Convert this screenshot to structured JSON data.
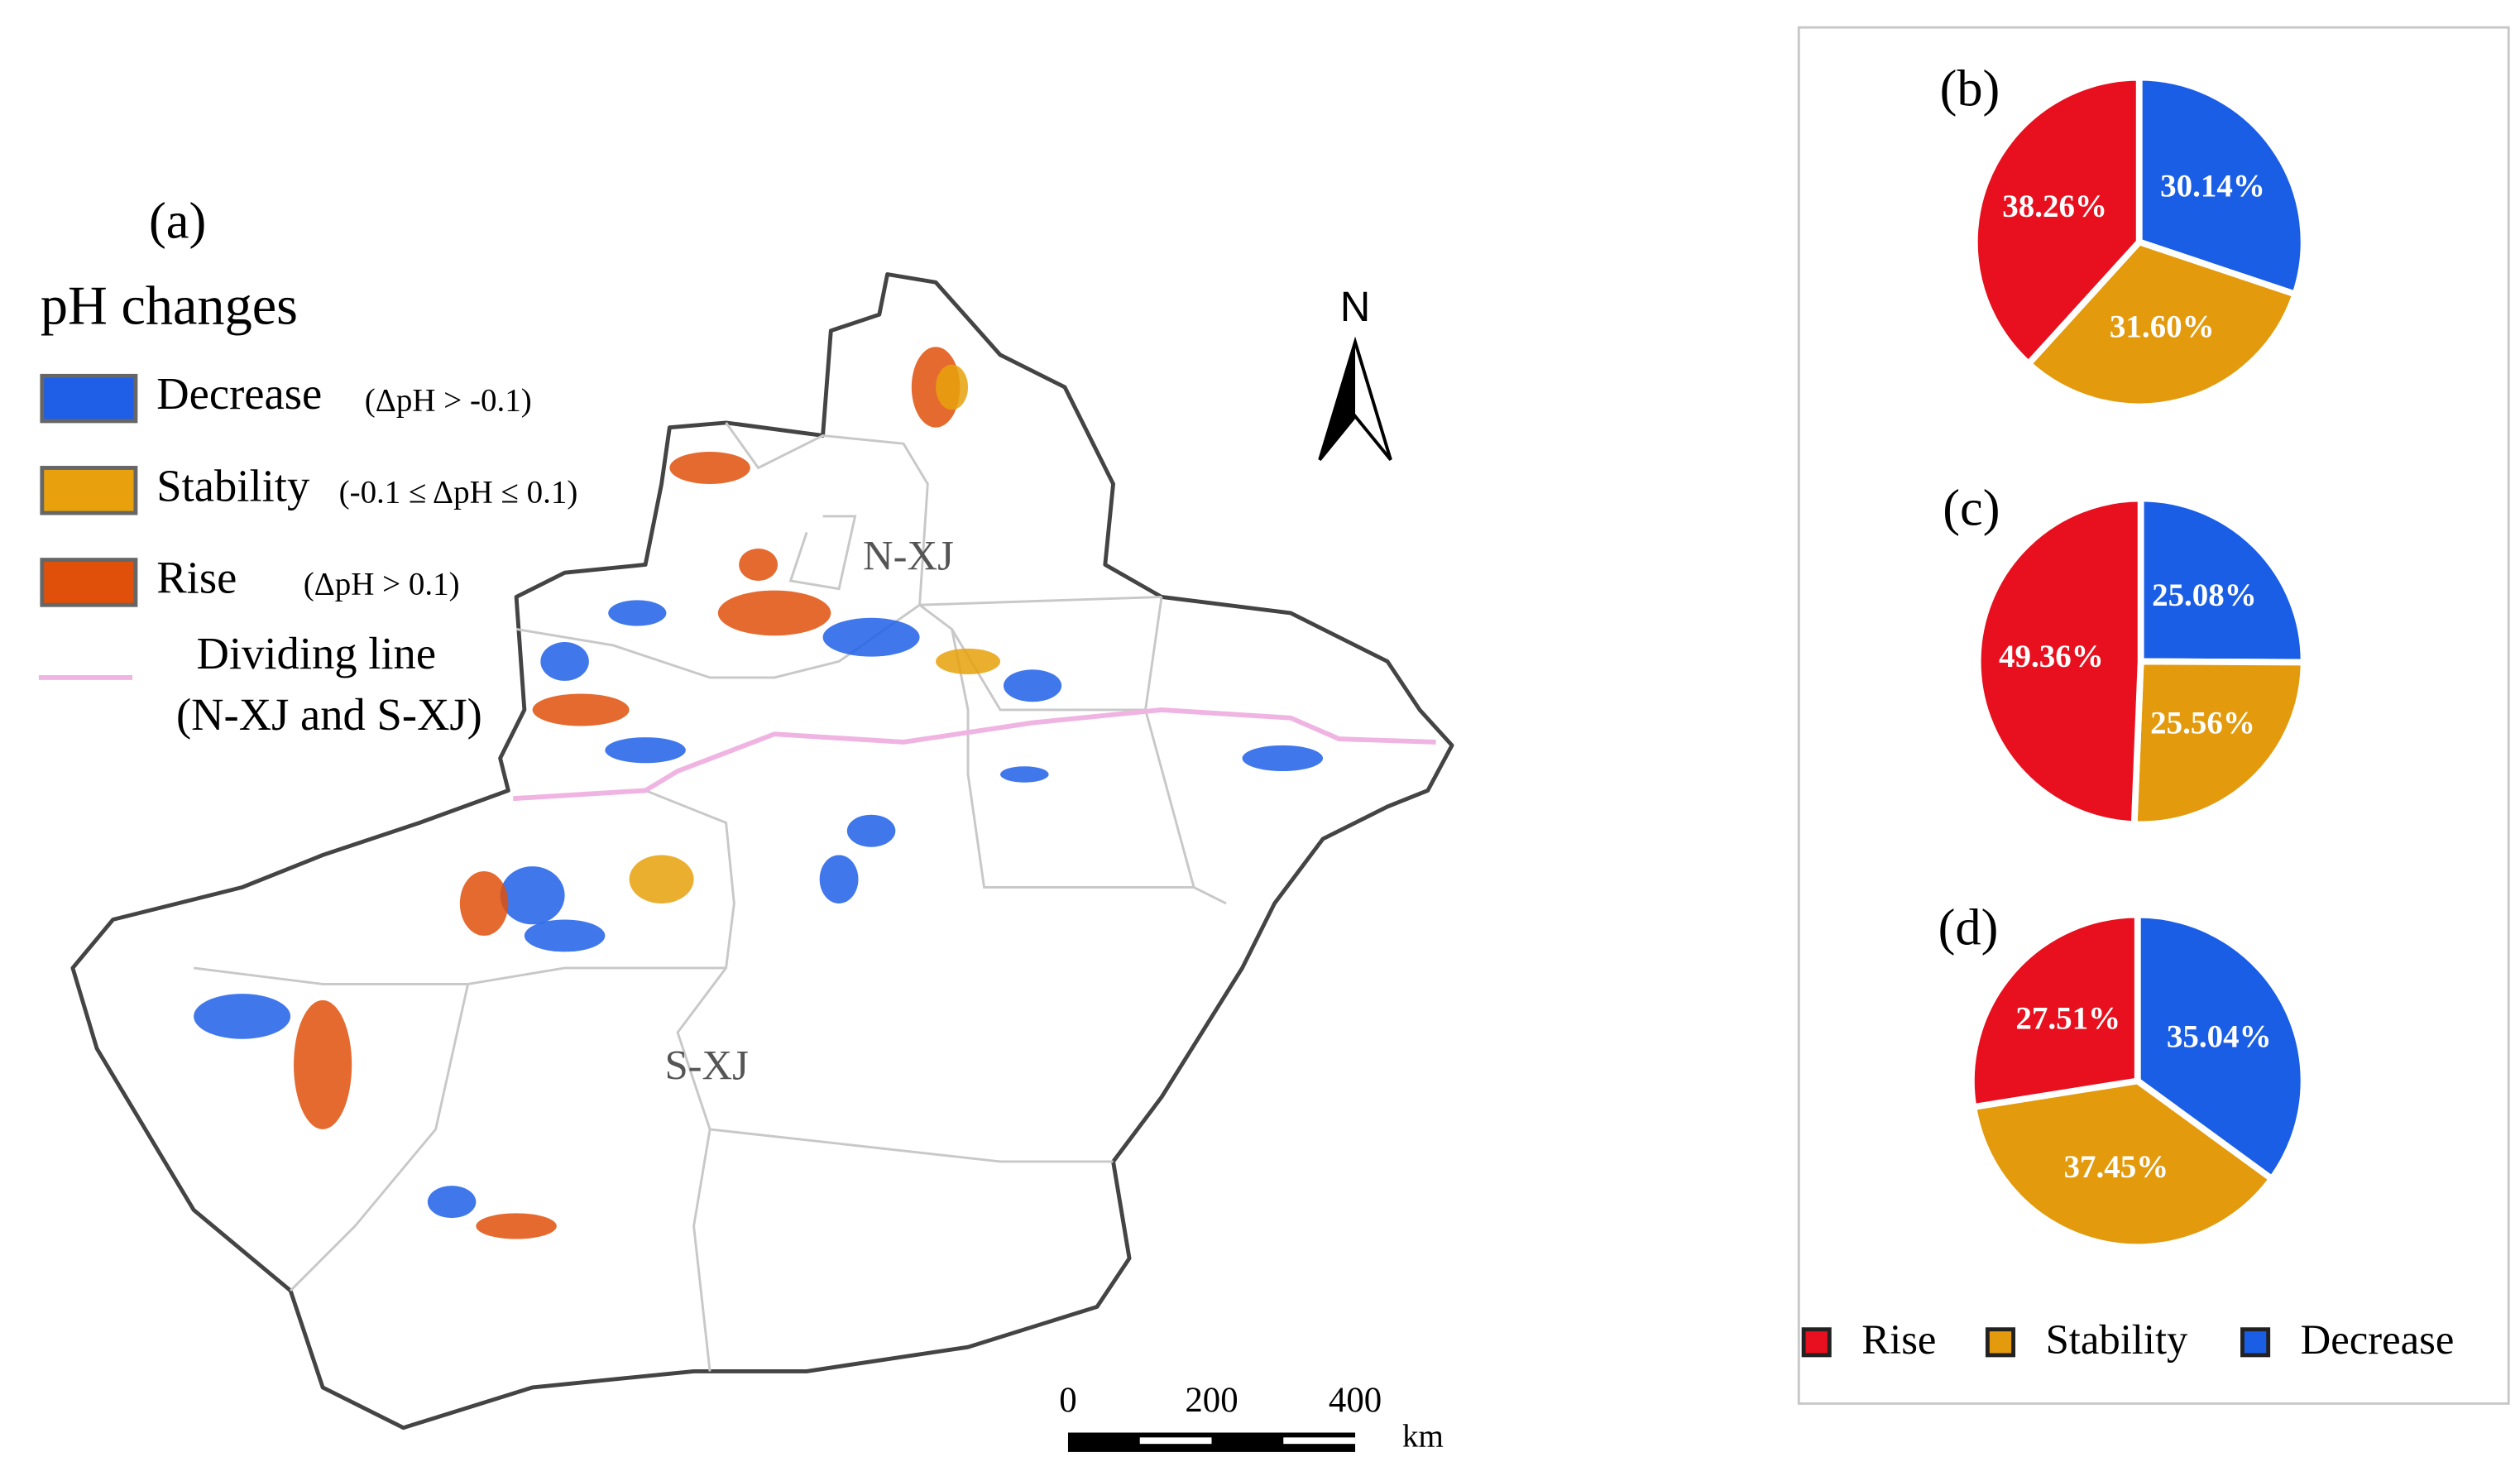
{
  "map": {
    "panel": "(a)",
    "legend_title": "pH changes",
    "legend": [
      {
        "name": "Decrease",
        "note": "(ΔpH > -0.1)",
        "color": "#1f5fe8"
      },
      {
        "name": "Stability",
        "note": "(-0.1 ≤ ΔpH ≤ 0.1)",
        "color": "#e8a10c"
      },
      {
        "name": "Rise",
        "note": "(ΔpH > 0.1)",
        "color": "#e0500a"
      }
    ],
    "dividing_line": {
      "name": "Dividing line",
      "note": "(N-XJ and S-XJ)",
      "color": "#f0b4e2"
    },
    "regions": [
      "N-XJ",
      "S-XJ"
    ],
    "north": "N",
    "scale_bar": {
      "ticks": [
        0,
        200,
        400
      ],
      "unit": "km"
    }
  },
  "chart_data": [
    {
      "type": "pie",
      "title": "(b)",
      "categories": [
        "Rise",
        "Stability",
        "Decrease"
      ],
      "colors": [
        "#e8101e",
        "#e39a0c",
        "#1a5ee6"
      ],
      "values": [
        38.26,
        31.6,
        30.14
      ],
      "value_labels": [
        "38.26%",
        "31.60%",
        "30.14%"
      ]
    },
    {
      "type": "pie",
      "title": "(c)",
      "categories": [
        "Rise",
        "Stability",
        "Decrease"
      ],
      "colors": [
        "#e8101e",
        "#e39a0c",
        "#1a5ee6"
      ],
      "values": [
        49.36,
        25.56,
        25.08
      ],
      "value_labels": [
        "49.36%",
        "25.56%",
        "25.08%"
      ]
    },
    {
      "type": "pie",
      "title": "(d)",
      "categories": [
        "Rise",
        "Stability",
        "Decrease"
      ],
      "colors": [
        "#e8101e",
        "#e39a0c",
        "#1a5ee6"
      ],
      "values": [
        27.51,
        37.45,
        35.04
      ],
      "value_labels": [
        "27.51%",
        "37.45%",
        "35.04%"
      ]
    }
  ]
}
